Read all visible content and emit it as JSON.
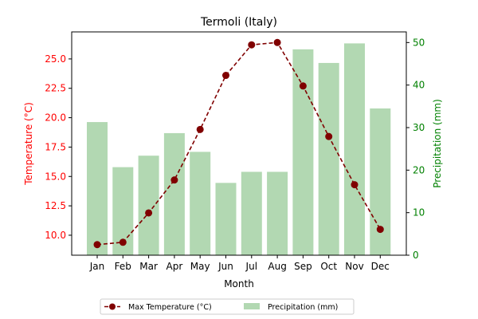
{
  "chart_data": {
    "type": "bar+line",
    "title": "Termoli (Italy)",
    "xlabel": "Month",
    "ylabel_left": "Temperature (°C)",
    "ylabel_right": "Precipitation (mm)",
    "categories": [
      "Jan",
      "Feb",
      "Mar",
      "Apr",
      "May",
      "Jun",
      "Jul",
      "Aug",
      "Sep",
      "Oct",
      "Nov",
      "Dec"
    ],
    "ylim_left": [
      8.3,
      27.3
    ],
    "ylim_right": [
      0,
      52.5
    ],
    "yticks_left": [
      "10.0",
      "12.5",
      "15.0",
      "17.5",
      "20.0",
      "22.5",
      "25.0"
    ],
    "yticks_right": [
      "0",
      "10",
      "20",
      "30",
      "40",
      "50"
    ],
    "series": [
      {
        "name": "Max Temperature (°C)",
        "type": "line",
        "axis": "left",
        "color": "#800000",
        "values": [
          9.2,
          9.4,
          11.9,
          14.7,
          19.0,
          23.6,
          26.2,
          26.4,
          22.7,
          18.4,
          14.3,
          10.5
        ]
      },
      {
        "name": "Precipitation (mm)",
        "type": "bar",
        "axis": "right",
        "color": "#b2d8b2",
        "values": [
          31.3,
          20.7,
          23.4,
          28.7,
          24.3,
          17.0,
          19.6,
          19.6,
          48.4,
          45.2,
          49.8,
          34.5
        ]
      }
    ],
    "left_axis_color": "#ff0000",
    "right_axis_color": "#008000",
    "legend_position": "bottom-center",
    "grid": false
  }
}
